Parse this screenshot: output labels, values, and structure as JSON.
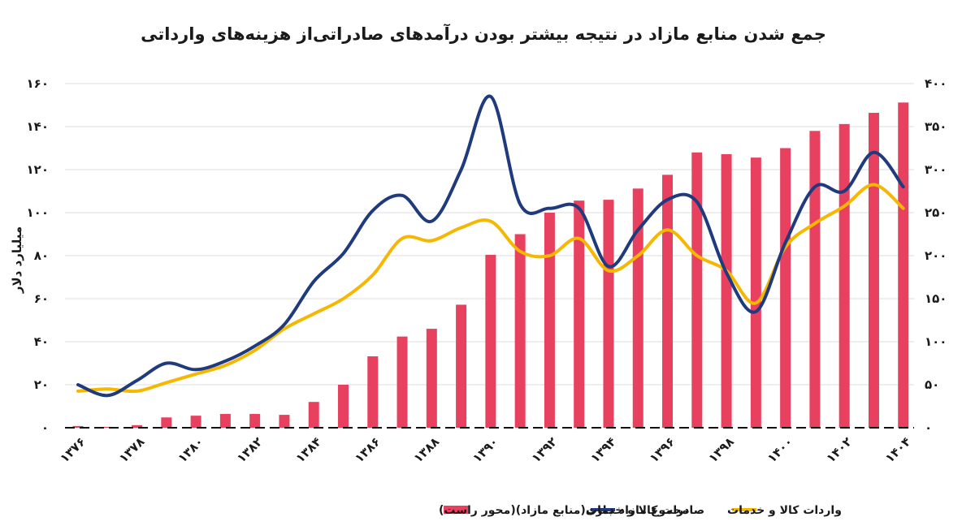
{
  "chart_data": {
    "type": "bar+line",
    "title": "جمع شدن منابع مازاد در نتیجه بیشتر بودن درآمدهای صادراتی‌از هزینه‌های وارداتی",
    "ylabel_left": "میلیارد دلار",
    "ylim_left": [
      0,
      160
    ],
    "ylim_right": [
      0,
      400
    ],
    "yticks_left": [
      "۰",
      "۲۰",
      "۴۰",
      "۶۰",
      "۸۰",
      "۱۰۰",
      "۱۲۰",
      "۱۴۰",
      "۱۶۰"
    ],
    "yticks_right": [
      "۰",
      "۵۰",
      "۱۰۰",
      "۱۵۰",
      "۲۰۰",
      "۲۵۰",
      "۳۰۰",
      "۳۵۰",
      "۴۰۰"
    ],
    "x": [
      1376,
      1377,
      1378,
      1379,
      1380,
      1381,
      1382,
      1383,
      1384,
      1385,
      1386,
      1387,
      1388,
      1389,
      1390,
      1391,
      1392,
      1393,
      1394,
      1395,
      1396,
      1397,
      1398,
      1399,
      1400,
      1401,
      1402,
      1403,
      1404
    ],
    "x_tick_labels": [
      "۱۳۷۶",
      "۱۳۷۸",
      "۱۳۸۰",
      "۱۳۸۲",
      "۱۳۸۴",
      "۱۳۸۶",
      "۱۳۸۸",
      "۱۳۹۰",
      "۱۳۹۲",
      "۱۳۹۴",
      "۱۳۹۶",
      "۱۳۹۸",
      "۱۴۰۰",
      "۱۴۰۲",
      "۱۴۰۴"
    ],
    "grid": true,
    "legend_position": "bottom",
    "series": [
      {
        "name": "مجموع مازاد جاری(منابع مازاد)(محور راست)",
        "kind": "bar",
        "axis": "right",
        "color": "#e8405f",
        "values": [
          2,
          1,
          3,
          12,
          14,
          16,
          16,
          15,
          30,
          50,
          83,
          106,
          115,
          143,
          201,
          225,
          250,
          264,
          265,
          278,
          294,
          320,
          318,
          314,
          325,
          345,
          353,
          366,
          378
        ]
      },
      {
        "name": "صادرات کالا و خدمات",
        "kind": "line",
        "axis": "left",
        "color": "#1f3b7e",
        "values": [
          20,
          15,
          22,
          30,
          27,
          31,
          38,
          48,
          68,
          81,
          101,
          108,
          96,
          120,
          154,
          104,
          102,
          102,
          75,
          92,
          106,
          105,
          72,
          54,
          86,
          112,
          110,
          128,
          112
        ]
      },
      {
        "name": "واردات کالا و خدمات",
        "kind": "line",
        "axis": "left",
        "color": "#f5b700",
        "values": [
          17,
          18,
          17,
          21,
          25,
          29,
          36,
          46,
          53,
          60,
          71,
          88,
          87,
          93,
          96,
          82,
          80,
          88,
          73,
          80,
          92,
          80,
          73,
          58,
          84,
          95,
          103,
          113,
          102
        ]
      }
    ]
  }
}
